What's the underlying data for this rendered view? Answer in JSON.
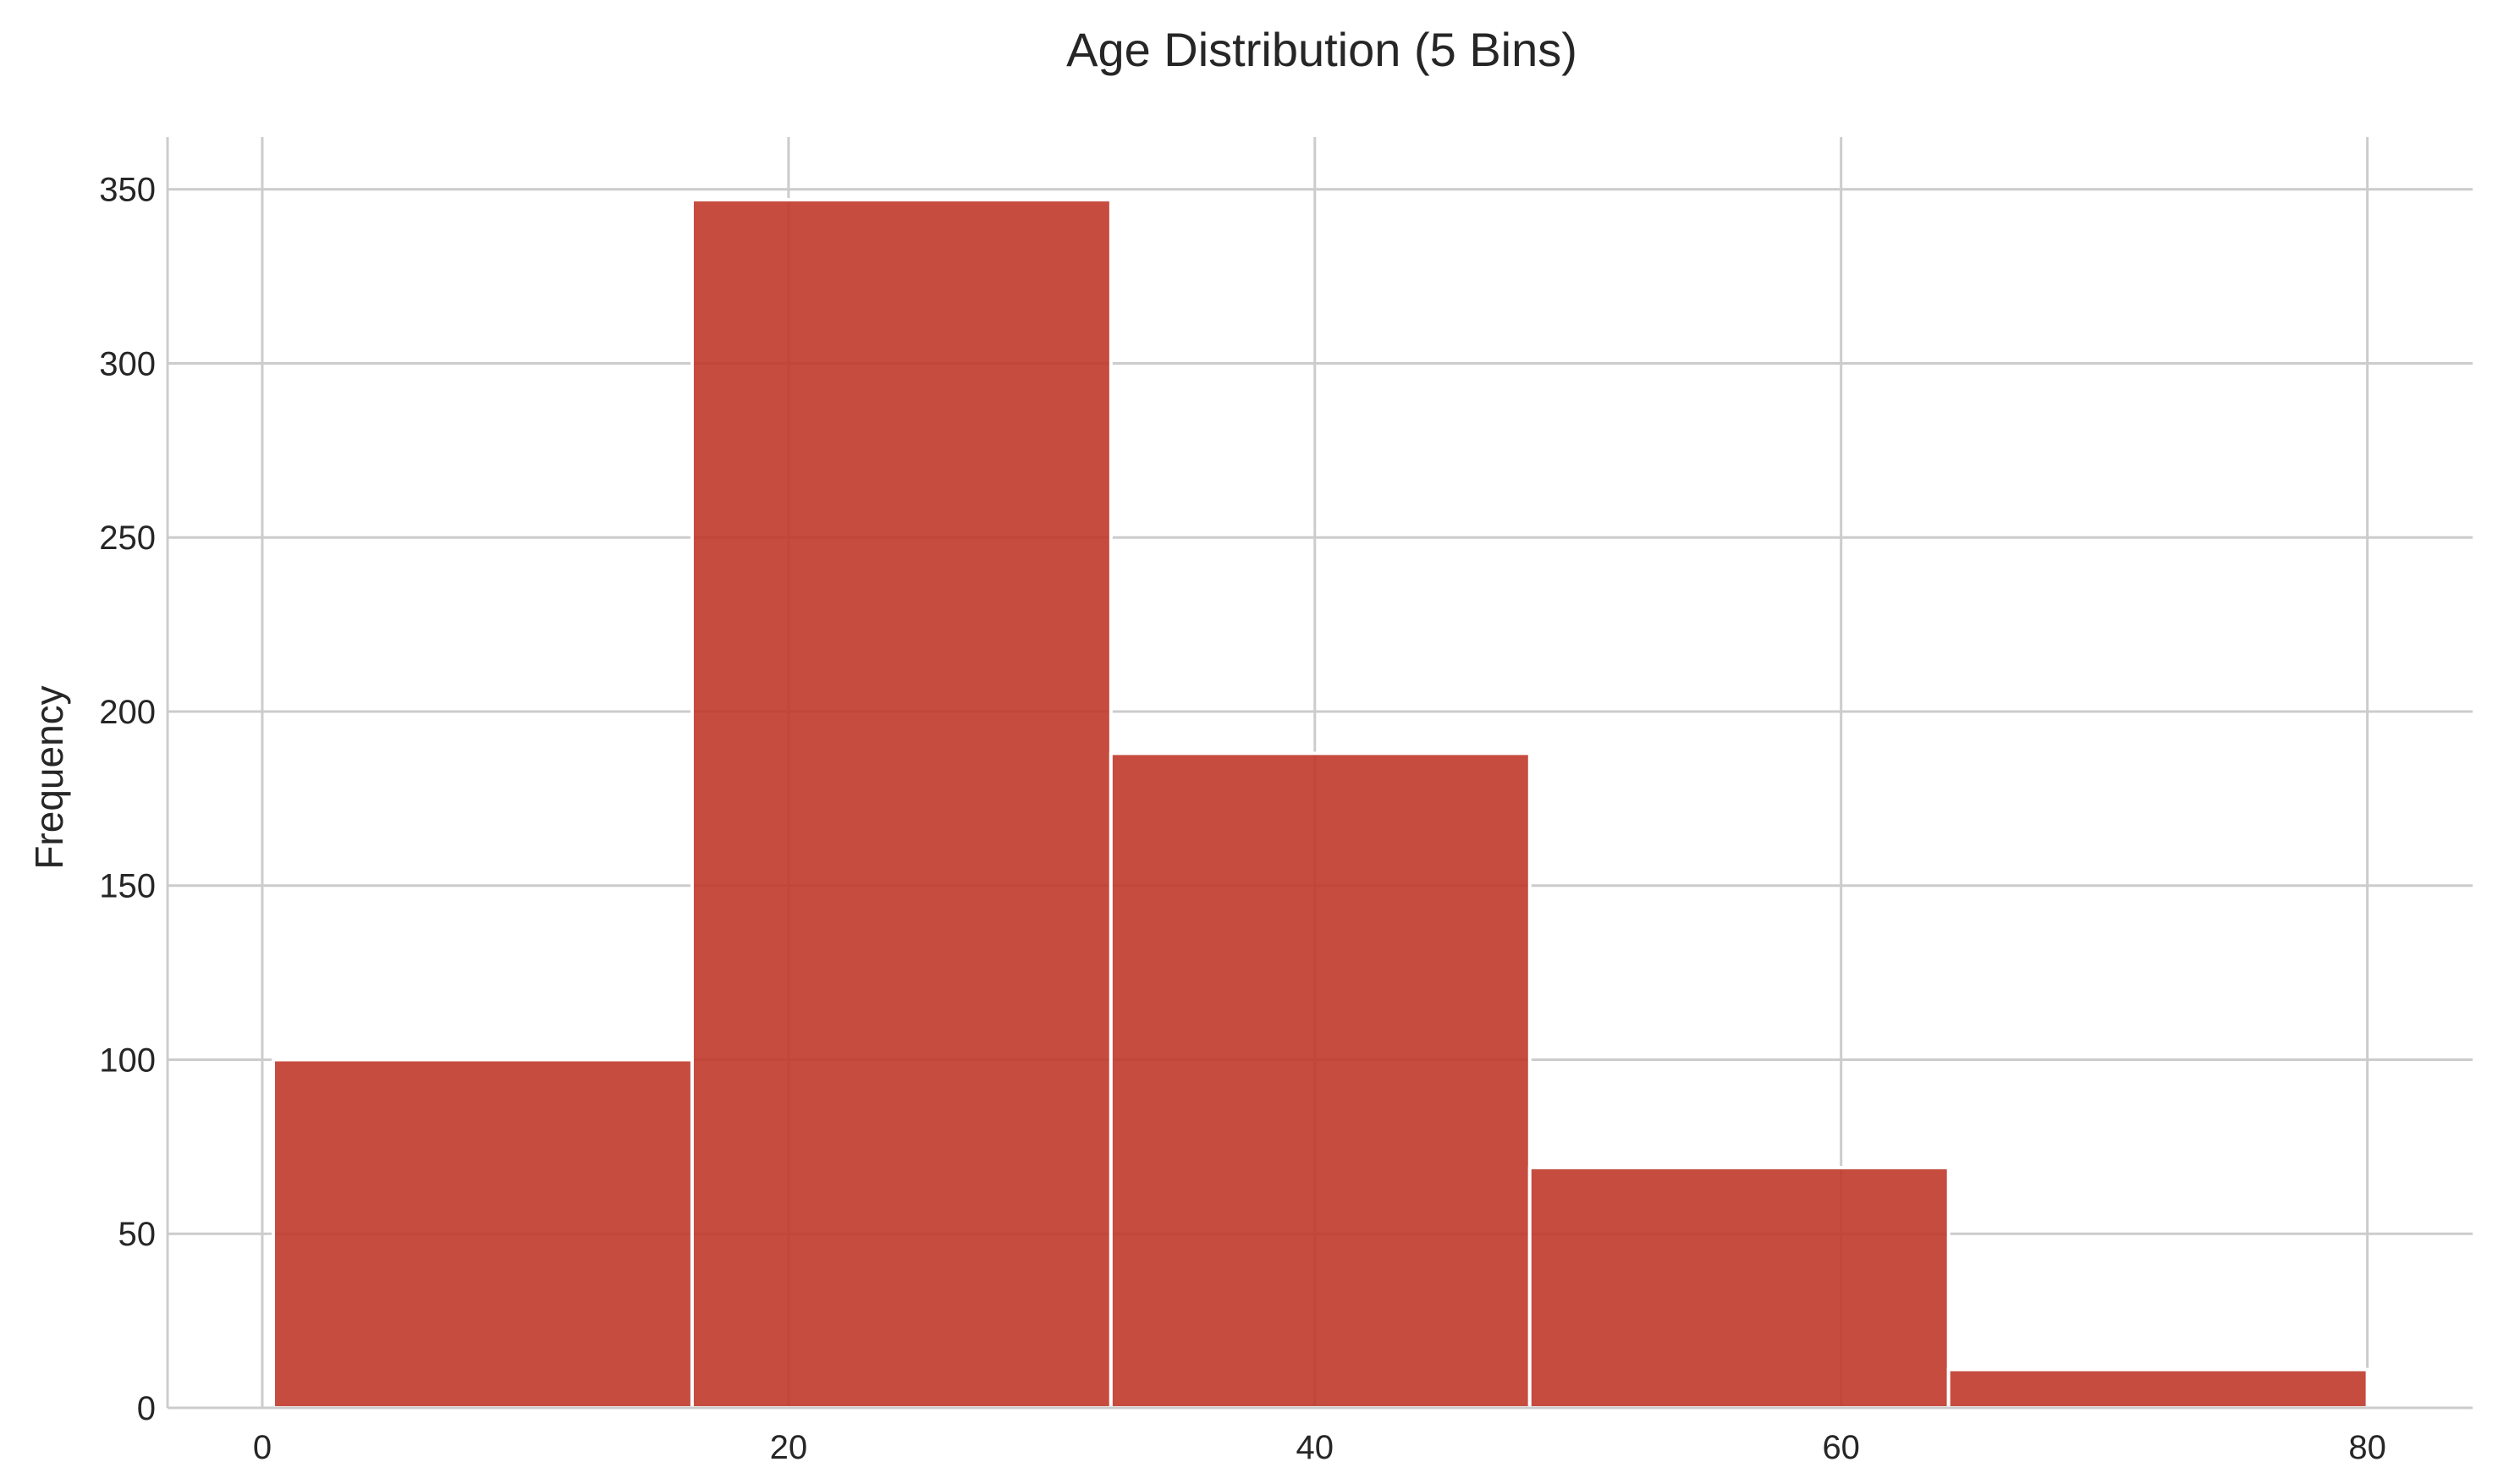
{
  "chart_data": {
    "type": "bar",
    "title": "Age Distribution (5 Bins)",
    "xlabel": "",
    "ylabel": "Frequency",
    "bin_edges": [
      0.42,
      16.336,
      32.252,
      48.168,
      64.084,
      80.0
    ],
    "values": [
      100,
      347,
      188,
      69,
      11
    ],
    "xlim": [
      -3.6,
      84.0
    ],
    "ylim": [
      0,
      365
    ],
    "x_ticks": [
      0,
      20,
      40,
      60,
      80
    ],
    "x_tick_labels": [
      "0",
      "20",
      "40",
      "60",
      "80"
    ],
    "y_ticks": [
      0,
      50,
      100,
      150,
      200,
      250,
      300,
      350
    ],
    "y_tick_labels": [
      "0",
      "50",
      "100",
      "150",
      "200",
      "250",
      "300",
      "350"
    ],
    "grid": true,
    "bar_color": "#c0392b",
    "bar_opacity": 0.9
  }
}
